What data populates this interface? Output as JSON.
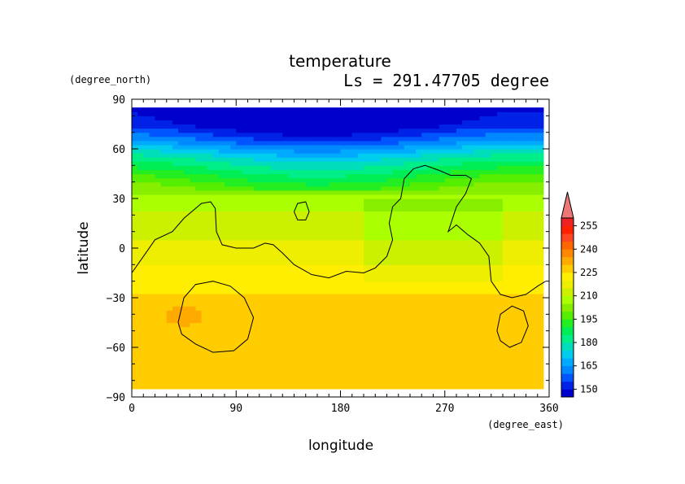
{
  "chart_data": {
    "type": "heatmap",
    "title": "temperature",
    "subtitle": "Ls = 291.47705 degree",
    "xlabel": "longitude",
    "ylabel": "latitude",
    "x_units": "(degree_east)",
    "y_units": "(degree_north)",
    "xlim": [
      0,
      360
    ],
    "ylim": [
      -90,
      90
    ],
    "x_ticks": [
      "0",
      "90",
      "180",
      "270",
      "360"
    ],
    "y_ticks": [
      "90",
      "60",
      "30",
      "0",
      "−30",
      "−60",
      "−90"
    ],
    "x_tick_values": [
      0,
      90,
      180,
      270,
      360
    ],
    "y_tick_values": [
      90,
      60,
      30,
      0,
      -30,
      -60,
      -90
    ],
    "data_lat_range": [
      -85,
      85
    ],
    "data_lon_range": [
      0,
      355
    ],
    "colorbar": {
      "levels": [
        145,
        150,
        155,
        160,
        165,
        170,
        175,
        180,
        185,
        190,
        195,
        200,
        205,
        210,
        215,
        220,
        225,
        230,
        235,
        240,
        245,
        250,
        255,
        260
      ],
      "labels": [
        "150",
        "165",
        "180",
        "195",
        "210",
        "225",
        "240",
        "255"
      ],
      "label_values": [
        150,
        165,
        180,
        195,
        210,
        225,
        240,
        255
      ],
      "colors": [
        "#0000cc",
        "#0022e6",
        "#0055ff",
        "#0088ff",
        "#00aaff",
        "#00ccee",
        "#00ddbb",
        "#00ee88",
        "#00ee55",
        "#22ee22",
        "#55ee00",
        "#88ee00",
        "#aaff00",
        "#ccf000",
        "#eeee00",
        "#ffee00",
        "#ffcc00",
        "#ffaa00",
        "#ff8800",
        "#ff6600",
        "#ff4422",
        "#ff2200",
        "#ee2222"
      ],
      "overflow_color": "#ee7777",
      "extend": "max"
    },
    "temperature_profile": {
      "lat": [
        -85,
        -75,
        -65,
        -55,
        -45,
        -35,
        -25,
        -15,
        -5,
        5,
        15,
        25,
        35,
        45,
        55,
        65,
        75,
        85
      ],
      "values": [
        226,
        227,
        227,
        228,
        228,
        227,
        224,
        222,
        218,
        215,
        212,
        209,
        203,
        192,
        180,
        163,
        150,
        146
      ]
    },
    "contours": [
      {
        "name": "continent",
        "points": [
          [
            0,
            -15
          ],
          [
            10,
            -5
          ],
          [
            20,
            5
          ],
          [
            35,
            10
          ],
          [
            45,
            18
          ],
          [
            60,
            27
          ],
          [
            68,
            28
          ],
          [
            72,
            24
          ],
          [
            73,
            10
          ],
          [
            78,
            2
          ],
          [
            90,
            0
          ],
          [
            105,
            0
          ],
          [
            115,
            3
          ],
          [
            122,
            2
          ],
          [
            130,
            -3
          ],
          [
            140,
            -10
          ],
          [
            155,
            -16
          ],
          [
            170,
            -18
          ],
          [
            185,
            -14
          ],
          [
            200,
            -15
          ],
          [
            210,
            -12
          ],
          [
            220,
            -5
          ],
          [
            225,
            5
          ],
          [
            222,
            15
          ],
          [
            225,
            25
          ],
          [
            232,
            30
          ],
          [
            235,
            42
          ],
          [
            243,
            48
          ],
          [
            253,
            50
          ],
          [
            265,
            47
          ],
          [
            275,
            44
          ],
          [
            288,
            44
          ],
          [
            293,
            42
          ],
          [
            288,
            33
          ],
          [
            280,
            25
          ],
          [
            273,
            10
          ],
          [
            280,
            14
          ],
          [
            290,
            8
          ],
          [
            300,
            3
          ],
          [
            308,
            -5
          ],
          [
            310,
            -20
          ],
          [
            318,
            -28
          ],
          [
            328,
            -30
          ],
          [
            340,
            -28
          ],
          [
            350,
            -23
          ],
          [
            357,
            -20
          ]
        ]
      },
      {
        "name": "ring",
        "points": [
          [
            40,
            -45
          ],
          [
            45,
            -30
          ],
          [
            55,
            -22
          ],
          [
            70,
            -20
          ],
          [
            85,
            -23
          ],
          [
            97,
            -30
          ],
          [
            105,
            -42
          ],
          [
            100,
            -55
          ],
          [
            88,
            -62
          ],
          [
            70,
            -63
          ],
          [
            55,
            -58
          ],
          [
            43,
            -52
          ],
          [
            40,
            -45
          ]
        ]
      },
      {
        "name": "ring",
        "points": [
          [
            315,
            -50
          ],
          [
            318,
            -40
          ],
          [
            328,
            -35
          ],
          [
            338,
            -38
          ],
          [
            342,
            -47
          ],
          [
            336,
            -57
          ],
          [
            326,
            -60
          ],
          [
            318,
            -56
          ],
          [
            315,
            -50
          ]
        ]
      },
      {
        "name": "ring",
        "points": [
          [
            140,
            22
          ],
          [
            143,
            27
          ],
          [
            150,
            28
          ],
          [
            153,
            22
          ],
          [
            150,
            17
          ],
          [
            143,
            17
          ],
          [
            140,
            22
          ]
        ]
      }
    ]
  }
}
